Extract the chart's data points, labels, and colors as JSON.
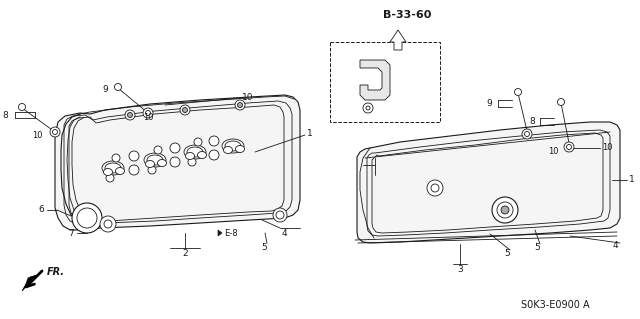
{
  "bg_color": "#ffffff",
  "line_color": "#1a1a1a",
  "title_ref": "B-33-60",
  "part_ref": "S0K3-E0900 A",
  "figsize": [
    6.4,
    3.19
  ],
  "dpi": 100
}
